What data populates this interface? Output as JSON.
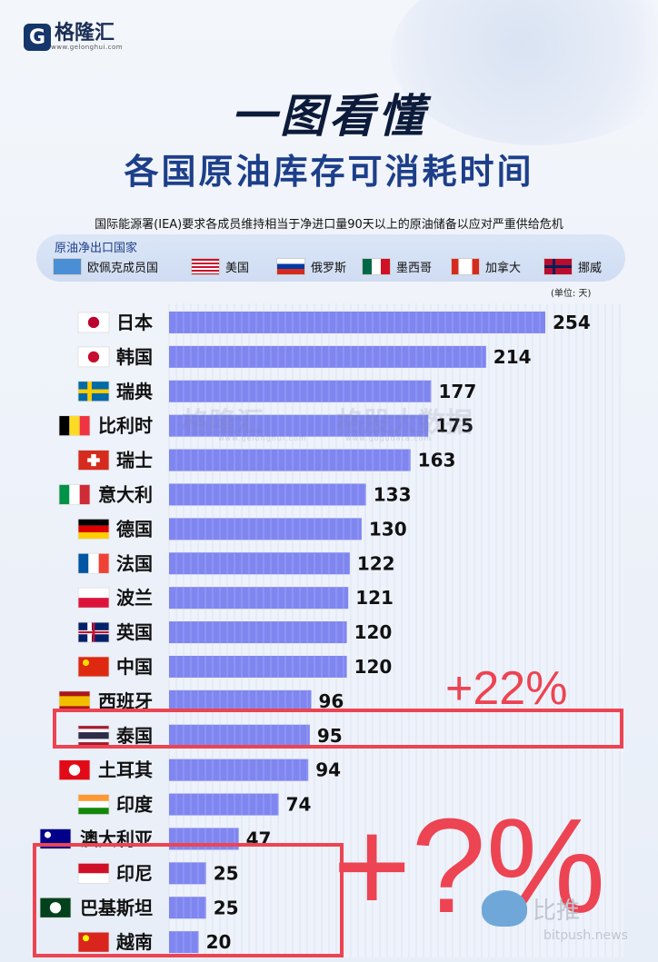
{
  "brand": {
    "name": "格隆汇",
    "mark": "G",
    "url": "www.gelonghui.com"
  },
  "title_main": "一图看懂",
  "title_sub": "各国原油库存可消耗时间",
  "subtitle": "国际能源署(IEA)要求各成员维持相当于净进口量90天以上的原油储备以应对严重供给危机",
  "legend": {
    "title": "原油净出口国家",
    "items": [
      {
        "label": "欧佩克成员国",
        "icon": "opec-flag-icon"
      },
      {
        "label": "美国",
        "icon": "usa-flag-icon"
      },
      {
        "label": "俄罗斯",
        "icon": "russia-flag-icon"
      },
      {
        "label": "墨西哥",
        "icon": "mexico-flag-icon"
      },
      {
        "label": "加拿大",
        "icon": "canada-flag-icon"
      },
      {
        "label": "挪威",
        "icon": "norway-flag-icon"
      }
    ]
  },
  "unit_label": "(单位: 天)",
  "watermark": {
    "text1": "格隆汇",
    "url1": "www.gelonghui.com",
    "text2": "格股大数据",
    "url2": "www.gogudata.com"
  },
  "annotations": {
    "plus22": "+22%",
    "plusq": "+?%"
  },
  "footer_brand": {
    "name": "比推",
    "url": "bitpush.news"
  },
  "colors": {
    "bar": "#7f86f0",
    "accent_red": "#ec4452",
    "title_blue": "#1d3f8a"
  },
  "chart_data": {
    "type": "bar",
    "orientation": "horizontal",
    "title": "各国原油库存可消耗时间",
    "categories": [
      "日本",
      "韩国",
      "瑞典",
      "比利时",
      "瑞士",
      "意大利",
      "德国",
      "法国",
      "波兰",
      "英国",
      "中国",
      "西班牙",
      "泰国",
      "土耳其",
      "印度",
      "澳大利亚",
      "印尼",
      "巴基斯坦",
      "越南"
    ],
    "flags": [
      "japan-flag-icon",
      "korea-flag-icon",
      "sweden-flag-icon",
      "belgium-flag-icon",
      "switzerland-flag-icon",
      "italy-flag-icon",
      "germany-flag-icon",
      "france-flag-icon",
      "poland-flag-icon",
      "uk-flag-icon",
      "china-flag-icon",
      "spain-flag-icon",
      "thailand-flag-icon",
      "turkey-flag-icon",
      "india-flag-icon",
      "australia-flag-icon",
      "indonesia-flag-icon",
      "pakistan-flag-icon",
      "vietnam-flag-icon"
    ],
    "values": [
      254,
      214,
      177,
      175,
      163,
      133,
      130,
      122,
      121,
      120,
      120,
      96,
      95,
      94,
      74,
      47,
      25,
      25,
      20
    ],
    "unit": "天",
    "xlim": [
      0,
      260
    ]
  }
}
